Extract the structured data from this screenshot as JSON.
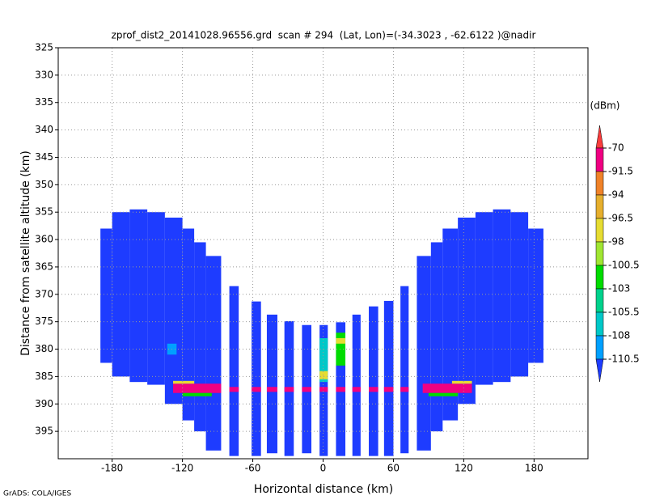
{
  "chart_data": {
    "type": "heatmap",
    "title": "zprof_dist2_20141028.96556.grd  scan # 294  (Lat, Lon)=(-34.3023 , -62.6122 )@nadir",
    "xlabel": "Horizontal distance (km)",
    "ylabel": "Distance from satellite altitude (km)",
    "xlim": [
      -226,
      226
    ],
    "xticks": [
      -180,
      -120,
      -60,
      0,
      60,
      120,
      180
    ],
    "ylim": [
      325,
      400
    ],
    "yticks": [
      325,
      330,
      335,
      340,
      345,
      350,
      355,
      360,
      365,
      370,
      375,
      380,
      385,
      390,
      395
    ],
    "grid": true,
    "colorbar": {
      "label": "(dBm)",
      "levels": [
        -70,
        -91.5,
        -94,
        -96.5,
        -98,
        -100.5,
        -103,
        -105.5,
        -108,
        -110.5
      ],
      "colors": [
        "#fa3c3c",
        "#f00082",
        "#f08228",
        "#e6af2d",
        "#e6dc32",
        "#a0e632",
        "#00dc00",
        "#00d28c",
        "#00c8c8",
        "#00a0ff",
        "#1e3cff"
      ]
    },
    "cells": [
      [
        -190,
        -180,
        358,
        382.5,
        -115
      ],
      [
        -180,
        -165,
        355,
        385,
        -115
      ],
      [
        -165,
        -150,
        354.5,
        386,
        -115
      ],
      [
        -150,
        -135,
        355,
        386.5,
        -115
      ],
      [
        -135,
        -120,
        356,
        390,
        -115
      ],
      [
        -120,
        -110,
        358,
        393,
        -115
      ],
      [
        -110,
        -100,
        360.5,
        395,
        -115
      ],
      [
        -100,
        -87,
        363,
        398.5,
        -115
      ],
      [
        -80,
        -72,
        368.5,
        399.5,
        -115
      ],
      [
        -61,
        -53,
        371.3,
        399.5,
        -115
      ],
      [
        -48,
        -39,
        373.7,
        399,
        -115
      ],
      [
        -33,
        -25,
        374.9,
        399.5,
        -115
      ],
      [
        -18,
        -10,
        375.6,
        399,
        -115
      ],
      [
        -3,
        4,
        375.6,
        399.5,
        -115
      ],
      [
        11,
        19,
        375.1,
        399.5,
        -115
      ],
      [
        25,
        32,
        373.7,
        399.5,
        -115
      ],
      [
        39,
        47,
        372.2,
        399.5,
        -115
      ],
      [
        52,
        60,
        371.2,
        399.5,
        -115
      ],
      [
        66,
        73,
        368.5,
        399,
        -115
      ],
      [
        80,
        92,
        363,
        398.5,
        -115
      ],
      [
        92,
        102,
        360.5,
        395,
        -115
      ],
      [
        102,
        115,
        358,
        393,
        -115
      ],
      [
        115,
        130,
        356,
        390,
        -115
      ],
      [
        130,
        145,
        355,
        386.5,
        -115
      ],
      [
        145,
        160,
        354.5,
        386,
        -115
      ],
      [
        160,
        175,
        355,
        385,
        -115
      ],
      [
        175,
        188,
        358,
        382.5,
        -115
      ],
      [
        -133,
        -125,
        379,
        381,
        -109
      ],
      [
        -3,
        4,
        378,
        386,
        -107
      ],
      [
        -3,
        4,
        384,
        385.5,
        -97
      ],
      [
        11,
        19,
        377,
        383,
        -102
      ],
      [
        11,
        19,
        378,
        379,
        -97
      ],
      [
        -128,
        -87,
        386.3,
        388,
        -80
      ],
      [
        85,
        127,
        386.3,
        388,
        -80
      ],
      [
        -128,
        -110,
        385.8,
        386.3,
        -97
      ],
      [
        110,
        127,
        385.8,
        386.3,
        -97
      ],
      [
        -120,
        -95,
        388,
        388.6,
        -101
      ],
      [
        90,
        115,
        388,
        388.6,
        -101
      ],
      [
        -80,
        -72,
        386.9,
        387.8,
        -80
      ],
      [
        -61,
        -53,
        386.9,
        387.8,
        -80
      ],
      [
        -48,
        -39,
        386.9,
        387.8,
        -80
      ],
      [
        -33,
        -25,
        386.9,
        387.8,
        -80
      ],
      [
        -18,
        -10,
        386.9,
        387.8,
        -80
      ],
      [
        -3,
        4,
        386.9,
        387.8,
        -80
      ],
      [
        11,
        19,
        386.9,
        387.8,
        -80
      ],
      [
        25,
        32,
        386.9,
        387.8,
        -80
      ],
      [
        39,
        47,
        386.9,
        387.8,
        -80
      ],
      [
        52,
        60,
        386.9,
        387.8,
        -80
      ],
      [
        66,
        73,
        386.9,
        387.8,
        -80
      ]
    ],
    "footer": "GrADS: COLA/IGES"
  }
}
